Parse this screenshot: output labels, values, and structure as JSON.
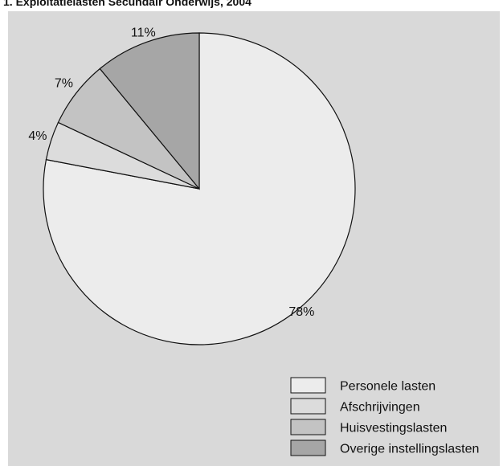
{
  "chart_data": {
    "type": "pie",
    "title": "1. Exploitatielasten Secundair Onderwijs, 2004",
    "categories": [
      "Personele lasten",
      "Afschrijvingen",
      "Huisvestingslasten",
      "Overige instellingslasten"
    ],
    "values": [
      78,
      4,
      7,
      11
    ],
    "labels": [
      "78%",
      "4%",
      "7%",
      "11%"
    ],
    "colors": [
      "#ececec",
      "#dcdcdc",
      "#c3c3c3",
      "#a6a6a6"
    ],
    "start_angle": "12 o'clock",
    "direction": "clockwise",
    "legend": "bottom-right"
  }
}
